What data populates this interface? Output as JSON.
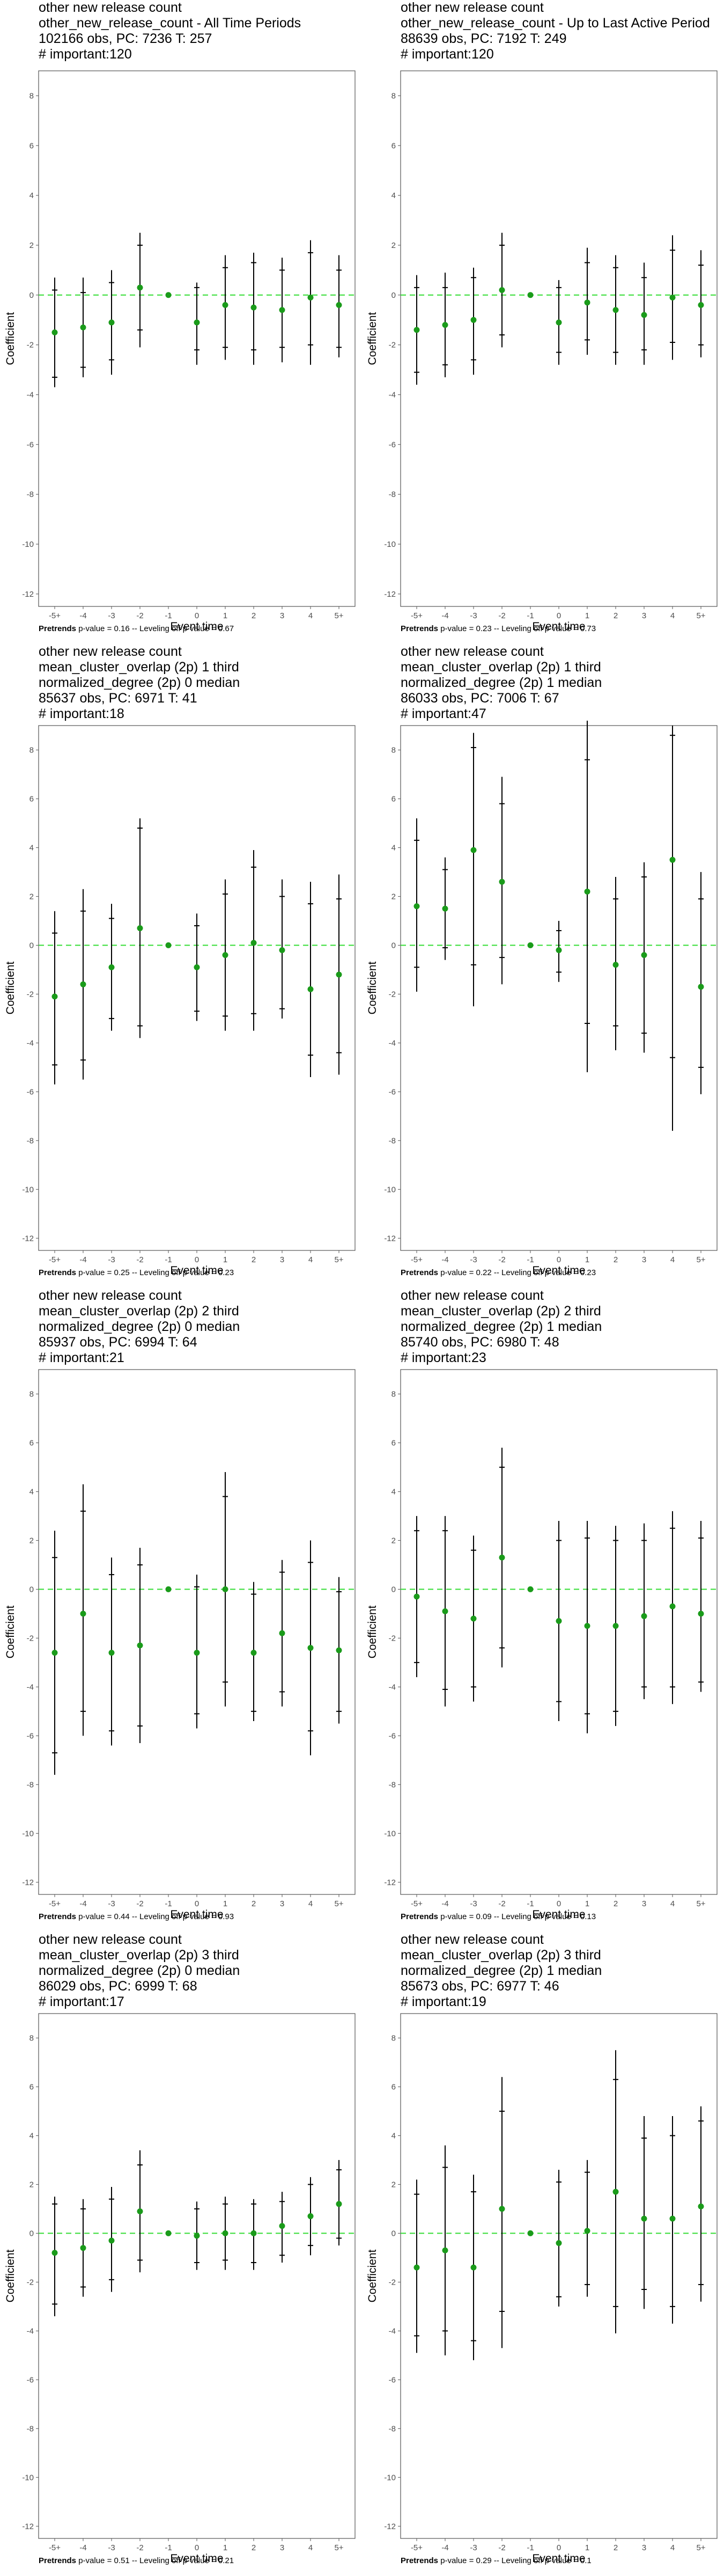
{
  "colors": {
    "point": "#1a9b1a",
    "dashed_line": "#33dd33",
    "interval": "#000000",
    "frame": "#555555",
    "tick_text": "#4d4d4d"
  },
  "axis": {
    "ylabel": "Coefficient",
    "xlabel": "Event time",
    "ylim": [
      -12.5,
      9
    ],
    "yticks": [
      "8",
      "6",
      "4",
      "2",
      "0",
      "-2",
      "-4",
      "-6",
      "-8",
      "-10",
      "-12"
    ],
    "ytick_values": [
      8,
      6,
      4,
      2,
      0,
      -2,
      -4,
      -6,
      -8,
      -10,
      -12
    ]
  },
  "chart_data": [
    {
      "type": "scatter",
      "title_lines": [
        "other new release count",
        "other_new_release_count - All Time Periods",
        "102166 obs, PC: 7236 T: 257",
        "# important:120"
      ],
      "footer_label": "Pretrends",
      "footer_text": " p-value = 0.16 -- Leveling off p-value = 0.67",
      "xlabel": "Event time",
      "ylabel": "Coefficient",
      "categories": [
        "-5+",
        "-4",
        "-3",
        "-2",
        "-1",
        "0",
        "1",
        "2",
        "3",
        "4",
        "5+"
      ],
      "values": [
        -1.5,
        -1.3,
        -1.1,
        0.3,
        0.0,
        -1.1,
        -0.4,
        -0.5,
        -0.6,
        -0.1,
        -0.4
      ],
      "ci95_low": [
        -3.7,
        -3.3,
        -3.2,
        -2.1,
        0.0,
        -2.8,
        -2.6,
        -2.8,
        -2.7,
        -2.8,
        -2.5
      ],
      "ci95_high": [
        0.7,
        0.7,
        1.0,
        2.5,
        0.0,
        0.5,
        1.6,
        1.7,
        1.5,
        2.2,
        1.6
      ],
      "ci90_low": [
        -3.3,
        -2.9,
        -2.6,
        -1.4,
        0.0,
        -2.2,
        -2.1,
        -2.2,
        -2.1,
        -2.0,
        -2.1
      ],
      "ci90_high": [
        0.2,
        0.1,
        0.5,
        2.0,
        0.0,
        0.3,
        1.1,
        1.3,
        1.0,
        1.7,
        1.0
      ],
      "ylim": [
        -12.5,
        9
      ]
    },
    {
      "type": "scatter",
      "title_lines": [
        "other new release count",
        "other_new_release_count - Up to Last Active Period",
        "88639 obs, PC: 7192 T: 249",
        "# important:120"
      ],
      "footer_label": "Pretrends",
      "footer_text": " p-value = 0.23 -- Leveling off p-value = 0.73",
      "xlabel": "Event time",
      "ylabel": "Coefficient",
      "categories": [
        "-5+",
        "-4",
        "-3",
        "-2",
        "-1",
        "0",
        "1",
        "2",
        "3",
        "4",
        "5+"
      ],
      "values": [
        -1.4,
        -1.2,
        -1.0,
        0.2,
        0.0,
        -1.1,
        -0.3,
        -0.6,
        -0.8,
        -0.1,
        -0.4
      ],
      "ci95_low": [
        -3.6,
        -3.3,
        -3.2,
        -2.1,
        0.0,
        -2.8,
        -2.4,
        -2.8,
        -2.8,
        -2.6,
        -2.5
      ],
      "ci95_high": [
        0.8,
        0.9,
        1.1,
        2.5,
        0.0,
        0.6,
        1.9,
        1.6,
        1.3,
        2.4,
        1.8
      ],
      "ci90_low": [
        -3.1,
        -2.8,
        -2.6,
        -1.6,
        0.0,
        -2.3,
        -1.8,
        -2.3,
        -2.2,
        -1.9,
        -2.0
      ],
      "ci90_high": [
        0.3,
        0.3,
        0.7,
        2.0,
        0.0,
        0.3,
        1.3,
        1.1,
        0.7,
        1.8,
        1.2
      ],
      "ylim": [
        -12.5,
        9
      ]
    },
    {
      "type": "scatter",
      "title_lines": [
        "other new release count",
        "mean_cluster_overlap (2p) 1 third",
        "normalized_degree (2p) 0 median",
        "85637 obs, PC: 6971 T: 41",
        "# important:18"
      ],
      "footer_label": "Pretrends",
      "footer_text": " p-value = 0.25 -- Leveling off p-value = 0.23",
      "xlabel": "Event time",
      "ylabel": "Coefficient",
      "categories": [
        "-5+",
        "-4",
        "-3",
        "-2",
        "-1",
        "0",
        "1",
        "2",
        "3",
        "4",
        "5+"
      ],
      "values": [
        -2.1,
        -1.6,
        -0.9,
        0.7,
        0.0,
        -0.9,
        -0.4,
        0.1,
        -0.2,
        -1.8,
        -1.2
      ],
      "ci95_low": [
        -5.7,
        -5.5,
        -3.5,
        -3.8,
        0.0,
        -3.1,
        -3.5,
        -3.5,
        -3.0,
        -5.4,
        -5.3
      ],
      "ci95_high": [
        1.4,
        2.3,
        1.7,
        5.2,
        0.0,
        1.3,
        2.7,
        3.9,
        2.7,
        2.6,
        2.9
      ],
      "ci90_low": [
        -4.9,
        -4.7,
        -3.0,
        -3.3,
        0.0,
        -2.7,
        -2.9,
        -2.8,
        -2.6,
        -4.5,
        -4.4
      ],
      "ci90_high": [
        0.5,
        1.4,
        1.1,
        4.8,
        0.0,
        0.8,
        2.1,
        3.2,
        2.0,
        1.7,
        1.9
      ],
      "ylim": [
        -12.5,
        9
      ]
    },
    {
      "type": "scatter",
      "title_lines": [
        "other new release count",
        "mean_cluster_overlap (2p) 1 third",
        "normalized_degree (2p) 1 median",
        "86033 obs, PC: 7006 T: 67",
        "# important:47"
      ],
      "footer_label": "Pretrends",
      "footer_text": " p-value = 0.22 -- Leveling off p-value = 0.23",
      "xlabel": "Event time",
      "ylabel": "Coefficient",
      "categories": [
        "-5+",
        "-4",
        "-3",
        "-2",
        "-1",
        "0",
        "1",
        "2",
        "3",
        "4",
        "5+"
      ],
      "values": [
        1.6,
        1.5,
        3.9,
        2.6,
        0.0,
        -0.2,
        2.2,
        -0.8,
        -0.4,
        3.5,
        -1.7
      ],
      "ci95_low": [
        -1.9,
        -0.6,
        -2.5,
        -1.6,
        0.0,
        -1.5,
        -5.2,
        -4.3,
        -4.4,
        -7.6,
        -6.1
      ],
      "ci95_high": [
        5.2,
        3.6,
        8.7,
        6.9,
        0.0,
        1.0,
        9.2,
        2.8,
        3.4,
        9.0,
        3.0
      ],
      "ci90_low": [
        -0.9,
        -0.1,
        -0.8,
        -0.5,
        0.0,
        -1.1,
        -3.2,
        -3.3,
        -3.6,
        -4.6,
        -5.0
      ],
      "ci90_high": [
        4.3,
        3.1,
        8.1,
        5.8,
        0.0,
        0.6,
        7.6,
        1.9,
        2.8,
        8.6,
        1.9
      ],
      "ylim": [
        -12.5,
        9
      ]
    },
    {
      "type": "scatter",
      "title_lines": [
        "other new release count",
        "mean_cluster_overlap (2p) 2 third",
        "normalized_degree (2p) 0 median",
        "85937 obs, PC: 6994 T: 64",
        "# important:21"
      ],
      "footer_label": "Pretrends",
      "footer_text": " p-value = 0.44 -- Leveling off p-value = 0.93",
      "xlabel": "Event time",
      "ylabel": "Coefficient",
      "categories": [
        "-5+",
        "-4",
        "-3",
        "-2",
        "-1",
        "0",
        "1",
        "2",
        "3",
        "4",
        "5+"
      ],
      "values": [
        -2.6,
        -1.0,
        -2.6,
        -2.3,
        0.0,
        -2.6,
        0.0,
        -2.6,
        -1.8,
        -2.4,
        -2.5
      ],
      "ci95_low": [
        -7.6,
        -6.0,
        -6.4,
        -6.3,
        0.0,
        -5.7,
        -4.8,
        -5.4,
        -4.8,
        -6.8,
        -5.5
      ],
      "ci95_high": [
        2.4,
        4.3,
        1.3,
        1.7,
        0.0,
        0.6,
        4.8,
        0.3,
        1.2,
        2.0,
        0.5
      ],
      "ci90_low": [
        -6.7,
        -5.0,
        -5.8,
        -5.6,
        0.0,
        -5.1,
        -3.8,
        -5.0,
        -4.2,
        -5.8,
        -5.0
      ],
      "ci90_high": [
        1.3,
        3.2,
        0.6,
        1.0,
        0.0,
        0.1,
        3.8,
        -0.2,
        0.7,
        1.1,
        -0.1
      ],
      "ylim": [
        -12.5,
        9
      ]
    },
    {
      "type": "scatter",
      "title_lines": [
        "other new release count",
        "mean_cluster_overlap (2p) 2 third",
        "normalized_degree (2p) 1 median",
        "85740 obs, PC: 6980 T: 48",
        "# important:23"
      ],
      "footer_label": "Pretrends",
      "footer_text": " p-value = 0.09 -- Leveling off p-value = 0.13",
      "xlabel": "Event time",
      "ylabel": "Coefficient",
      "categories": [
        "-5+",
        "-4",
        "-3",
        "-2",
        "-1",
        "0",
        "1",
        "2",
        "3",
        "4",
        "5+"
      ],
      "values": [
        -0.3,
        -0.9,
        -1.2,
        1.3,
        0.0,
        -1.3,
        -1.5,
        -1.5,
        -1.1,
        -0.7,
        -1.0
      ],
      "ci95_low": [
        -3.6,
        -4.8,
        -4.6,
        -3.2,
        0.0,
        -5.4,
        -5.9,
        -5.6,
        -4.5,
        -4.7,
        -4.2
      ],
      "ci95_high": [
        3.0,
        3.0,
        2.2,
        5.8,
        0.0,
        2.8,
        2.8,
        2.6,
        2.7,
        3.2,
        2.8
      ],
      "ci90_low": [
        -3.0,
        -4.1,
        -4.0,
        -2.4,
        0.0,
        -4.6,
        -5.1,
        -5.0,
        -4.0,
        -4.0,
        -3.8
      ],
      "ci90_high": [
        2.4,
        2.4,
        1.6,
        5.0,
        0.0,
        2.0,
        2.1,
        2.0,
        2.0,
        2.5,
        2.1
      ],
      "ylim": [
        -12.5,
        9
      ]
    },
    {
      "type": "scatter",
      "title_lines": [
        "other new release count",
        "mean_cluster_overlap (2p) 3 third",
        "normalized_degree (2p) 0 median",
        "86029 obs, PC: 6999 T: 68",
        "# important:17"
      ],
      "footer_label": "Pretrends",
      "footer_text": " p-value = 0.51 -- Leveling off p-value = 0.21",
      "xlabel": "Event time",
      "ylabel": "Coefficient",
      "categories": [
        "-5+",
        "-4",
        "-3",
        "-2",
        "-1",
        "0",
        "1",
        "2",
        "3",
        "4",
        "5+"
      ],
      "values": [
        -0.8,
        -0.6,
        -0.3,
        0.9,
        0.0,
        -0.1,
        0.0,
        0.0,
        0.3,
        0.7,
        1.2
      ],
      "ci95_low": [
        -3.4,
        -2.6,
        -2.4,
        -1.6,
        0.0,
        -1.5,
        -1.5,
        -1.5,
        -1.2,
        -0.9,
        -0.5
      ],
      "ci95_high": [
        1.5,
        1.4,
        1.9,
        3.4,
        0.0,
        1.3,
        1.5,
        1.4,
        1.7,
        2.3,
        3.0
      ],
      "ci90_low": [
        -2.9,
        -2.2,
        -1.9,
        -1.1,
        0.0,
        -1.2,
        -1.1,
        -1.2,
        -0.9,
        -0.5,
        -0.2
      ],
      "ci90_high": [
        1.2,
        1.0,
        1.4,
        2.8,
        0.0,
        1.0,
        1.2,
        1.2,
        1.3,
        2.0,
        2.6
      ],
      "ylim": [
        -12.5,
        9
      ]
    },
    {
      "type": "scatter",
      "title_lines": [
        "other new release count",
        "mean_cluster_overlap (2p) 3 third",
        "normalized_degree (2p) 1 median",
        "85673 obs, PC: 6977 T: 46",
        "# important:19"
      ],
      "footer_label": "Pretrends",
      "footer_text": " p-value = 0.29 -- Leveling off p-value = 0.1",
      "xlabel": "Event time",
      "ylabel": "Coefficient",
      "categories": [
        "-5+",
        "-4",
        "-3",
        "-2",
        "-1",
        "0",
        "1",
        "2",
        "3",
        "4",
        "5+"
      ],
      "values": [
        -1.4,
        -0.7,
        -1.4,
        1.0,
        0.0,
        -0.4,
        0.1,
        1.7,
        0.6,
        0.6,
        1.1
      ],
      "ci95_low": [
        -4.9,
        -5.0,
        -5.2,
        -4.7,
        0.0,
        -3.0,
        -2.6,
        -4.1,
        -3.1,
        -3.7,
        -2.8
      ],
      "ci95_high": [
        2.2,
        3.6,
        2.4,
        6.4,
        0.0,
        2.6,
        3.0,
        7.5,
        4.8,
        4.8,
        5.2
      ],
      "ci90_low": [
        -4.2,
        -4.0,
        -4.4,
        -3.2,
        0.0,
        -2.6,
        -2.1,
        -3.0,
        -2.3,
        -3.0,
        -2.1
      ],
      "ci90_high": [
        1.6,
        2.7,
        1.7,
        5.0,
        0.0,
        2.1,
        2.5,
        6.3,
        3.9,
        4.0,
        4.6
      ],
      "ylim": [
        -12.5,
        9
      ]
    }
  ]
}
